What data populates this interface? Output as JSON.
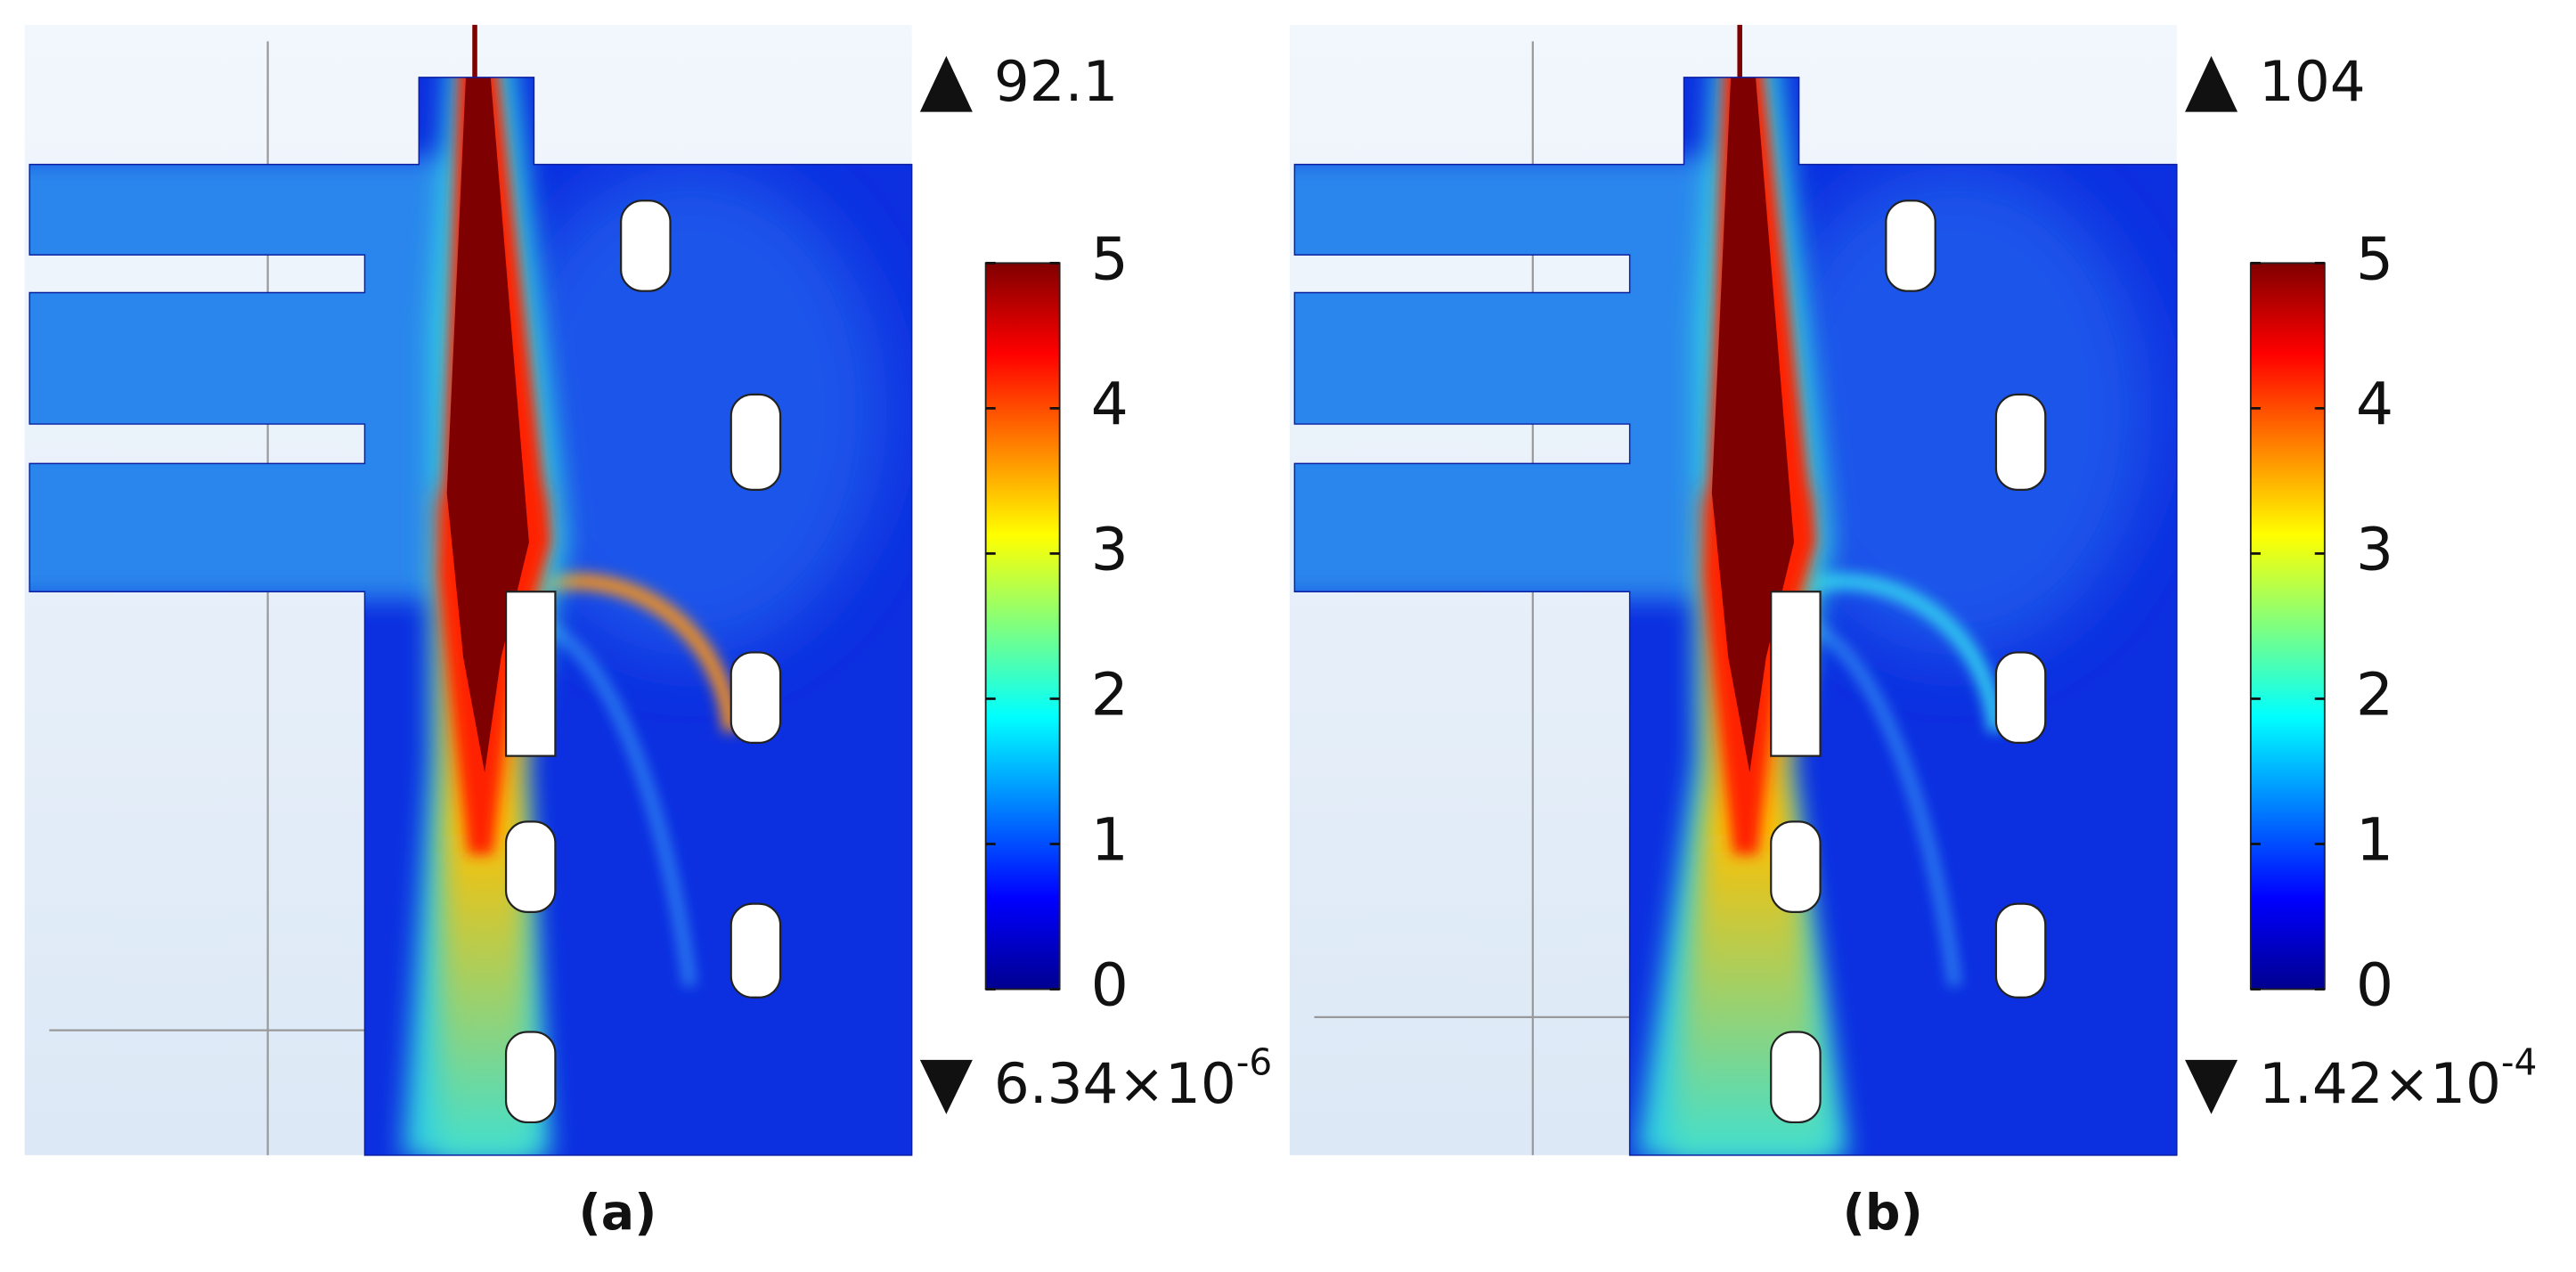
{
  "panels": [
    {
      "label": "(a)",
      "max": "92.1",
      "min": {
        "mantissa": "6.34×10",
        "exponent": "-6"
      },
      "colorbar": {
        "ticks": [
          0,
          1,
          2,
          3,
          4,
          5
        ]
      }
    },
    {
      "label": "(b)",
      "max": "104",
      "min": {
        "mantissa": "1.42×10",
        "exponent": "-4"
      },
      "colorbar": {
        "ticks": [
          0,
          1,
          2,
          3,
          4,
          5
        ]
      }
    }
  ]
}
